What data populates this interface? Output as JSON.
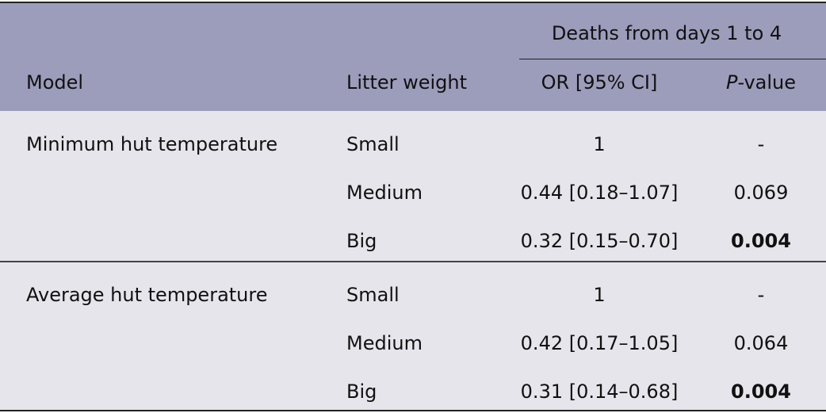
{
  "header": {
    "group_label": "Deaths from days 1 to 4",
    "model": "Model",
    "litter_weight": "Litter weight",
    "or": "OR [95% CI]",
    "p_italic": "P",
    "p_rest": "-value"
  },
  "groups": [
    {
      "model": "Minimum hut temperature",
      "rows": [
        {
          "weight": "Small",
          "or": "1",
          "p": "-"
        },
        {
          "weight": "Medium",
          "or": "0.44 [0.18–1.07]",
          "p": "0.069"
        },
        {
          "weight": "Big",
          "or": "0.32 [0.15–0.70]",
          "p": "0.004",
          "bold": true
        }
      ]
    },
    {
      "model": "Average hut temperature",
      "rows": [
        {
          "weight": "Small",
          "or": "1",
          "p": "-"
        },
        {
          "weight": "Medium",
          "or": "0.42 [0.17–1.05]",
          "p": "0.064"
        },
        {
          "weight": "Big",
          "or": "0.31 [0.14–0.68]",
          "p": "0.004",
          "bold": true
        }
      ]
    }
  ]
}
